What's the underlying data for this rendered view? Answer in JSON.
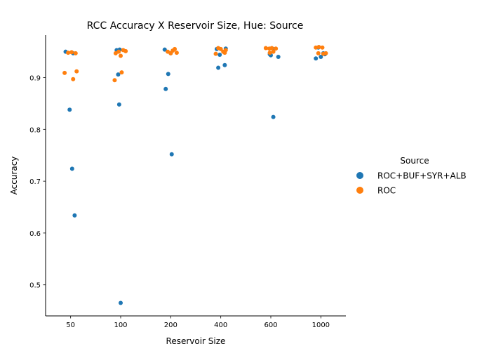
{
  "chart_data": {
    "type": "scatter",
    "title": "RCC Accuracy X Reservoir Size, Hue: Source",
    "xlabel": "Reservoir Size",
    "ylabel": "Accuracy",
    "categories": [
      "50",
      "100",
      "200",
      "400",
      "600",
      "1000"
    ],
    "ylim": [
      0.44,
      0.982
    ],
    "yticks": [
      "0.5",
      "0.6",
      "0.7",
      "0.8",
      "0.9"
    ],
    "grid": false,
    "legend": {
      "title": "Source",
      "placement": "right",
      "entries": [
        "ROC+BUF+SYR+ALB",
        "ROC"
      ]
    },
    "series": [
      {
        "name": "ROC+BUF+SYR+ALB",
        "color": "#1f77b4",
        "points": [
          {
            "x": "50",
            "y": 0.95,
            "jitter": -0.1
          },
          {
            "x": "50",
            "y": 0.947,
            "jitter": 0.05
          },
          {
            "x": "50",
            "y": 0.838,
            "jitter": -0.02
          },
          {
            "x": "50",
            "y": 0.724,
            "jitter": 0.03
          },
          {
            "x": "50",
            "y": 0.634,
            "jitter": 0.08
          },
          {
            "x": "100",
            "y": 0.953,
            "jitter": -0.08
          },
          {
            "x": "100",
            "y": 0.954,
            "jitter": -0.02
          },
          {
            "x": "100",
            "y": 0.906,
            "jitter": -0.05
          },
          {
            "x": "100",
            "y": 0.848,
            "jitter": -0.03
          },
          {
            "x": "100",
            "y": 0.465,
            "jitter": 0.0
          },
          {
            "x": "200",
            "y": 0.954,
            "jitter": -0.12
          },
          {
            "x": "200",
            "y": 0.947,
            "jitter": 0.0
          },
          {
            "x": "200",
            "y": 0.907,
            "jitter": -0.05
          },
          {
            "x": "200",
            "y": 0.878,
            "jitter": -0.1
          },
          {
            "x": "200",
            "y": 0.752,
            "jitter": 0.02
          },
          {
            "x": "400",
            "y": 0.955,
            "jitter": -0.08
          },
          {
            "x": "400",
            "y": 0.944,
            "jitter": -0.02
          },
          {
            "x": "400",
            "y": 0.956,
            "jitter": 0.1
          },
          {
            "x": "400",
            "y": 0.919,
            "jitter": -0.05
          },
          {
            "x": "400",
            "y": 0.924,
            "jitter": 0.08
          },
          {
            "x": "600",
            "y": 0.945,
            "jitter": -0.02
          },
          {
            "x": "600",
            "y": 0.943,
            "jitter": 0.0
          },
          {
            "x": "600",
            "y": 0.94,
            "jitter": 0.15
          },
          {
            "x": "600",
            "y": 0.955,
            "jitter": 0.05
          },
          {
            "x": "600",
            "y": 0.824,
            "jitter": 0.05
          },
          {
            "x": "1000",
            "y": 0.937,
            "jitter": -0.1
          },
          {
            "x": "1000",
            "y": 0.94,
            "jitter": 0.0
          },
          {
            "x": "1000",
            "y": 0.958,
            "jitter": -0.05
          },
          {
            "x": "1000",
            "y": 0.947,
            "jitter": 0.05
          },
          {
            "x": "1000",
            "y": 0.945,
            "jitter": 0.08
          }
        ]
      },
      {
        "name": "ROC",
        "color": "#ff7f0e",
        "points": [
          {
            "x": "50",
            "y": 0.948,
            "jitter": -0.05
          },
          {
            "x": "50",
            "y": 0.949,
            "jitter": 0.02
          },
          {
            "x": "50",
            "y": 0.947,
            "jitter": 0.1
          },
          {
            "x": "50",
            "y": 0.909,
            "jitter": -0.12
          },
          {
            "x": "50",
            "y": 0.912,
            "jitter": 0.12
          },
          {
            "x": "50",
            "y": 0.897,
            "jitter": 0.05
          },
          {
            "x": "100",
            "y": 0.947,
            "jitter": -0.1
          },
          {
            "x": "100",
            "y": 0.95,
            "jitter": -0.04
          },
          {
            "x": "100",
            "y": 0.942,
            "jitter": 0.0
          },
          {
            "x": "100",
            "y": 0.951,
            "jitter": 0.1
          },
          {
            "x": "100",
            "y": 0.953,
            "jitter": 0.05
          },
          {
            "x": "100",
            "y": 0.91,
            "jitter": 0.02
          },
          {
            "x": "100",
            "y": 0.895,
            "jitter": -0.12
          },
          {
            "x": "200",
            "y": 0.95,
            "jitter": -0.06
          },
          {
            "x": "200",
            "y": 0.947,
            "jitter": 0.0
          },
          {
            "x": "200",
            "y": 0.952,
            "jitter": 0.04
          },
          {
            "x": "200",
            "y": 0.955,
            "jitter": 0.08
          },
          {
            "x": "200",
            "y": 0.948,
            "jitter": 0.12
          },
          {
            "x": "400",
            "y": 0.946,
            "jitter": -0.1
          },
          {
            "x": "400",
            "y": 0.957,
            "jitter": -0.05
          },
          {
            "x": "400",
            "y": 0.955,
            "jitter": 0.0
          },
          {
            "x": "400",
            "y": 0.95,
            "jitter": 0.05
          },
          {
            "x": "400",
            "y": 0.953,
            "jitter": 0.1
          },
          {
            "x": "400",
            "y": 0.948,
            "jitter": 0.08
          },
          {
            "x": "600",
            "y": 0.957,
            "jitter": -0.1
          },
          {
            "x": "600",
            "y": 0.956,
            "jitter": -0.03
          },
          {
            "x": "600",
            "y": 0.957,
            "jitter": 0.02
          },
          {
            "x": "600",
            "y": 0.956,
            "jitter": 0.1
          },
          {
            "x": "600",
            "y": 0.95,
            "jitter": 0.05
          },
          {
            "x": "600",
            "y": 0.948,
            "jitter": -0.02
          },
          {
            "x": "1000",
            "y": 0.958,
            "jitter": -0.1
          },
          {
            "x": "1000",
            "y": 0.959,
            "jitter": -0.04
          },
          {
            "x": "1000",
            "y": 0.958,
            "jitter": 0.03
          },
          {
            "x": "1000",
            "y": 0.947,
            "jitter": -0.05
          },
          {
            "x": "1000",
            "y": 0.946,
            "jitter": 0.05
          },
          {
            "x": "1000",
            "y": 0.947,
            "jitter": 0.1
          }
        ]
      }
    ]
  }
}
